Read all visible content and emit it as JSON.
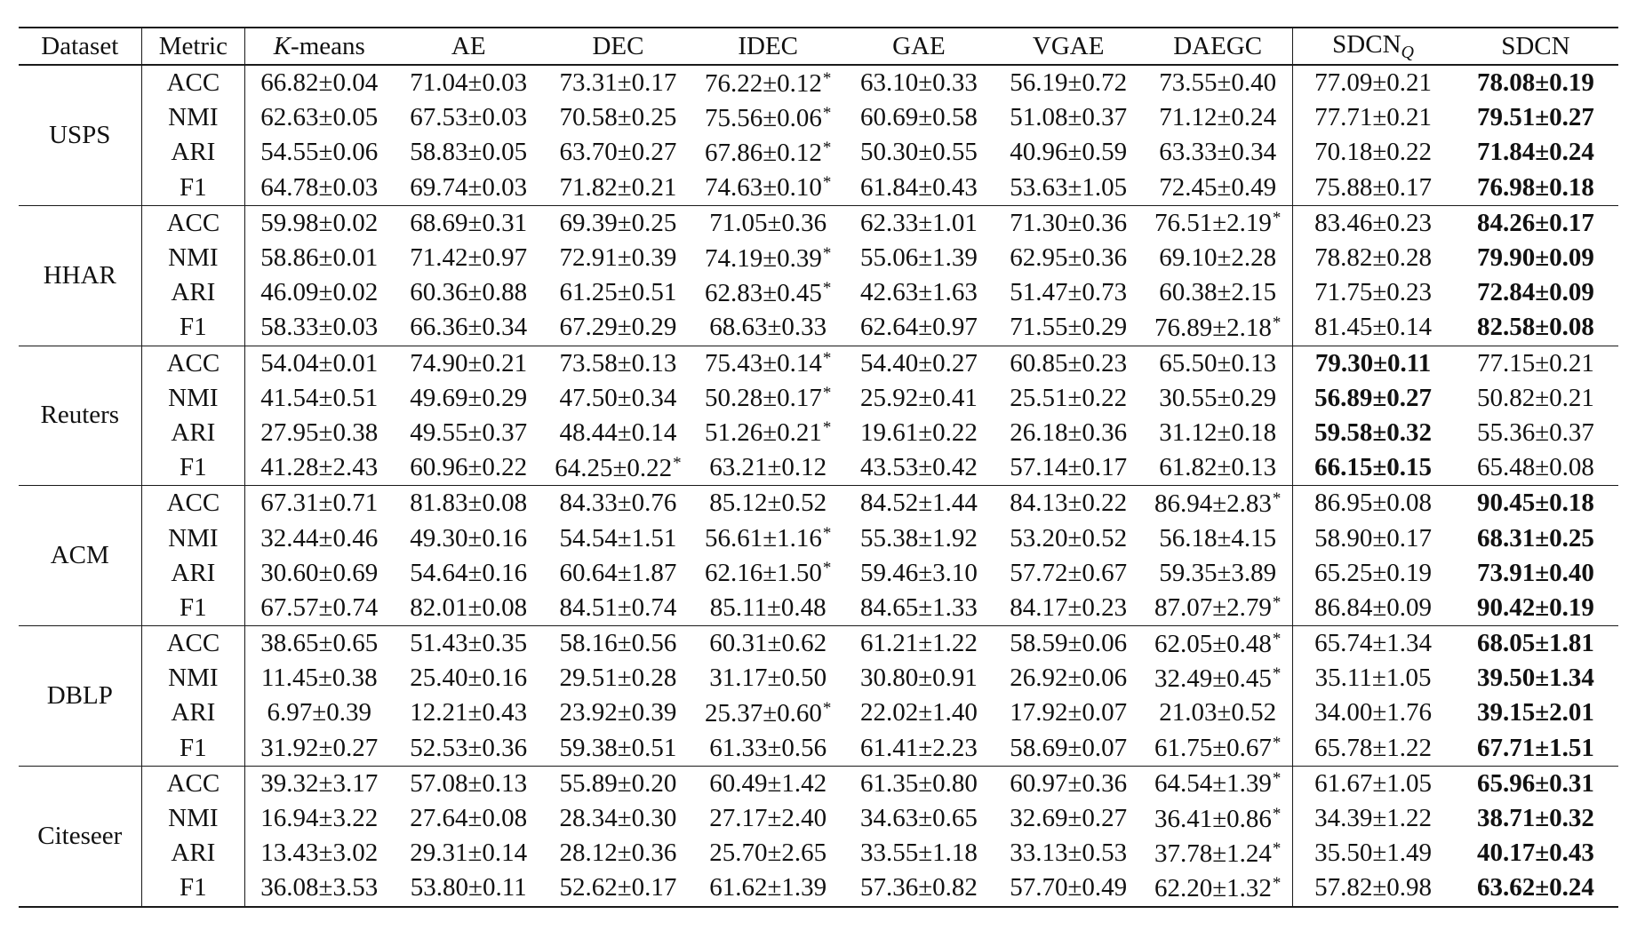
{
  "header": {
    "dataset": "Dataset",
    "metric": "Metric",
    "kmeans_k": "K",
    "kmeans_rest": "-means",
    "ae": "AE",
    "dec": "DEC",
    "idec": "IDEC",
    "gae": "GAE",
    "vgae": "VGAE",
    "daegc": "DAEGC",
    "sdcnq_base": "SDCN",
    "sdcnq_sub": "Q",
    "sdcn": "SDCN"
  },
  "star_mark": "*",
  "groups": [
    {
      "name": "USPS",
      "rows": [
        {
          "metric": "ACC",
          "cells": [
            {
              "v": "66.82±0.04"
            },
            {
              "v": "71.04±0.03"
            },
            {
              "v": "73.31±0.17"
            },
            {
              "v": "76.22±0.12",
              "star": true
            },
            {
              "v": "63.10±0.33"
            },
            {
              "v": "56.19±0.72"
            },
            {
              "v": "73.55±0.40"
            },
            {
              "v": "77.09±0.21"
            },
            {
              "v": "78.08±0.19",
              "bold": true
            }
          ]
        },
        {
          "metric": "NMI",
          "cells": [
            {
              "v": "62.63±0.05"
            },
            {
              "v": "67.53±0.03"
            },
            {
              "v": "70.58±0.25"
            },
            {
              "v": "75.56±0.06",
              "star": true
            },
            {
              "v": "60.69±0.58"
            },
            {
              "v": "51.08±0.37"
            },
            {
              "v": "71.12±0.24"
            },
            {
              "v": "77.71±0.21"
            },
            {
              "v": "79.51±0.27",
              "bold": true
            }
          ]
        },
        {
          "metric": "ARI",
          "cells": [
            {
              "v": "54.55±0.06"
            },
            {
              "v": "58.83±0.05"
            },
            {
              "v": "63.70±0.27"
            },
            {
              "v": "67.86±0.12",
              "star": true
            },
            {
              "v": "50.30±0.55"
            },
            {
              "v": "40.96±0.59"
            },
            {
              "v": "63.33±0.34"
            },
            {
              "v": "70.18±0.22"
            },
            {
              "v": "71.84±0.24",
              "bold": true
            }
          ]
        },
        {
          "metric": "F1",
          "cells": [
            {
              "v": "64.78±0.03"
            },
            {
              "v": "69.74±0.03"
            },
            {
              "v": "71.82±0.21"
            },
            {
              "v": "74.63±0.10",
              "star": true
            },
            {
              "v": "61.84±0.43"
            },
            {
              "v": "53.63±1.05"
            },
            {
              "v": "72.45±0.49"
            },
            {
              "v": "75.88±0.17"
            },
            {
              "v": "76.98±0.18",
              "bold": true
            }
          ]
        }
      ]
    },
    {
      "name": "HHAR",
      "rows": [
        {
          "metric": "ACC",
          "cells": [
            {
              "v": "59.98±0.02"
            },
            {
              "v": "68.69±0.31"
            },
            {
              "v": "69.39±0.25"
            },
            {
              "v": "71.05±0.36"
            },
            {
              "v": "62.33±1.01"
            },
            {
              "v": "71.30±0.36"
            },
            {
              "v": "76.51±2.19",
              "star": true
            },
            {
              "v": "83.46±0.23"
            },
            {
              "v": "84.26±0.17",
              "bold": true
            }
          ]
        },
        {
          "metric": "NMI",
          "cells": [
            {
              "v": "58.86±0.01"
            },
            {
              "v": "71.42±0.97"
            },
            {
              "v": "72.91±0.39"
            },
            {
              "v": "74.19±0.39",
              "star": true
            },
            {
              "v": "55.06±1.39"
            },
            {
              "v": "62.95±0.36"
            },
            {
              "v": "69.10±2.28"
            },
            {
              "v": "78.82±0.28"
            },
            {
              "v": "79.90±0.09",
              "bold": true
            }
          ]
        },
        {
          "metric": "ARI",
          "cells": [
            {
              "v": "46.09±0.02"
            },
            {
              "v": "60.36±0.88"
            },
            {
              "v": "61.25±0.51"
            },
            {
              "v": "62.83±0.45",
              "star": true
            },
            {
              "v": "42.63±1.63"
            },
            {
              "v": "51.47±0.73"
            },
            {
              "v": "60.38±2.15"
            },
            {
              "v": "71.75±0.23"
            },
            {
              "v": "72.84±0.09",
              "bold": true
            }
          ]
        },
        {
          "metric": "F1",
          "cells": [
            {
              "v": "58.33±0.03"
            },
            {
              "v": "66.36±0.34"
            },
            {
              "v": "67.29±0.29"
            },
            {
              "v": "68.63±0.33"
            },
            {
              "v": "62.64±0.97"
            },
            {
              "v": "71.55±0.29"
            },
            {
              "v": "76.89±2.18",
              "star": true
            },
            {
              "v": "81.45±0.14"
            },
            {
              "v": "82.58±0.08",
              "bold": true
            }
          ]
        }
      ]
    },
    {
      "name": "Reuters",
      "rows": [
        {
          "metric": "ACC",
          "cells": [
            {
              "v": "54.04±0.01"
            },
            {
              "v": "74.90±0.21"
            },
            {
              "v": "73.58±0.13"
            },
            {
              "v": "75.43±0.14",
              "star": true
            },
            {
              "v": "54.40±0.27"
            },
            {
              "v": "60.85±0.23"
            },
            {
              "v": "65.50±0.13"
            },
            {
              "v": "79.30±0.11",
              "bold": true
            },
            {
              "v": "77.15±0.21"
            }
          ]
        },
        {
          "metric": "NMI",
          "cells": [
            {
              "v": "41.54±0.51"
            },
            {
              "v": "49.69±0.29"
            },
            {
              "v": "47.50±0.34"
            },
            {
              "v": "50.28±0.17",
              "star": true
            },
            {
              "v": "25.92±0.41"
            },
            {
              "v": "25.51±0.22"
            },
            {
              "v": "30.55±0.29"
            },
            {
              "v": "56.89±0.27",
              "bold": true
            },
            {
              "v": "50.82±0.21"
            }
          ]
        },
        {
          "metric": "ARI",
          "cells": [
            {
              "v": "27.95±0.38"
            },
            {
              "v": "49.55±0.37"
            },
            {
              "v": "48.44±0.14"
            },
            {
              "v": "51.26±0.21",
              "star": true
            },
            {
              "v": "19.61±0.22"
            },
            {
              "v": "26.18±0.36"
            },
            {
              "v": "31.12±0.18"
            },
            {
              "v": "59.58±0.32",
              "bold": true
            },
            {
              "v": "55.36±0.37"
            }
          ]
        },
        {
          "metric": "F1",
          "cells": [
            {
              "v": "41.28±2.43"
            },
            {
              "v": "60.96±0.22"
            },
            {
              "v": "64.25±0.22",
              "star": true
            },
            {
              "v": "63.21±0.12"
            },
            {
              "v": "43.53±0.42"
            },
            {
              "v": "57.14±0.17"
            },
            {
              "v": "61.82±0.13"
            },
            {
              "v": "66.15±0.15",
              "bold": true
            },
            {
              "v": "65.48±0.08"
            }
          ]
        }
      ]
    },
    {
      "name": "ACM",
      "rows": [
        {
          "metric": "ACC",
          "cells": [
            {
              "v": "67.31±0.71"
            },
            {
              "v": "81.83±0.08"
            },
            {
              "v": "84.33±0.76"
            },
            {
              "v": "85.12±0.52"
            },
            {
              "v": "84.52±1.44"
            },
            {
              "v": "84.13±0.22"
            },
            {
              "v": "86.94±2.83",
              "star": true
            },
            {
              "v": "86.95±0.08"
            },
            {
              "v": "90.45±0.18",
              "bold": true
            }
          ]
        },
        {
          "metric": "NMI",
          "cells": [
            {
              "v": "32.44±0.46"
            },
            {
              "v": "49.30±0.16"
            },
            {
              "v": "54.54±1.51"
            },
            {
              "v": "56.61±1.16",
              "star": true
            },
            {
              "v": "55.38±1.92"
            },
            {
              "v": "53.20±0.52"
            },
            {
              "v": "56.18±4.15"
            },
            {
              "v": "58.90±0.17"
            },
            {
              "v": "68.31±0.25",
              "bold": true
            }
          ]
        },
        {
          "metric": "ARI",
          "cells": [
            {
              "v": "30.60±0.69"
            },
            {
              "v": "54.64±0.16"
            },
            {
              "v": "60.64±1.87"
            },
            {
              "v": "62.16±1.50",
              "star": true
            },
            {
              "v": "59.46±3.10"
            },
            {
              "v": "57.72±0.67"
            },
            {
              "v": "59.35±3.89"
            },
            {
              "v": "65.25±0.19"
            },
            {
              "v": "73.91±0.40",
              "bold": true
            }
          ]
        },
        {
          "metric": "F1",
          "cells": [
            {
              "v": "67.57±0.74"
            },
            {
              "v": "82.01±0.08"
            },
            {
              "v": "84.51±0.74"
            },
            {
              "v": "85.11±0.48"
            },
            {
              "v": "84.65±1.33"
            },
            {
              "v": "84.17±0.23"
            },
            {
              "v": "87.07±2.79",
              "star": true
            },
            {
              "v": "86.84±0.09"
            },
            {
              "v": "90.42±0.19",
              "bold": true
            }
          ]
        }
      ]
    },
    {
      "name": "DBLP",
      "rows": [
        {
          "metric": "ACC",
          "cells": [
            {
              "v": "38.65±0.65"
            },
            {
              "v": "51.43±0.35"
            },
            {
              "v": "58.16±0.56"
            },
            {
              "v": "60.31±0.62"
            },
            {
              "v": "61.21±1.22"
            },
            {
              "v": "58.59±0.06"
            },
            {
              "v": "62.05±0.48",
              "star": true
            },
            {
              "v": "65.74±1.34"
            },
            {
              "v": "68.05±1.81",
              "bold": true
            }
          ]
        },
        {
          "metric": "NMI",
          "cells": [
            {
              "v": "11.45±0.38"
            },
            {
              "v": "25.40±0.16"
            },
            {
              "v": "29.51±0.28"
            },
            {
              "v": "31.17±0.50"
            },
            {
              "v": "30.80±0.91"
            },
            {
              "v": "26.92±0.06"
            },
            {
              "v": "32.49±0.45",
              "star": true
            },
            {
              "v": "35.11±1.05"
            },
            {
              "v": "39.50±1.34",
              "bold": true
            }
          ]
        },
        {
          "metric": "ARI",
          "cells": [
            {
              "v": "6.97±0.39"
            },
            {
              "v": "12.21±0.43"
            },
            {
              "v": "23.92±0.39"
            },
            {
              "v": "25.37±0.60",
              "star": true
            },
            {
              "v": "22.02±1.40"
            },
            {
              "v": "17.92±0.07"
            },
            {
              "v": "21.03±0.52"
            },
            {
              "v": "34.00±1.76"
            },
            {
              "v": "39.15±2.01",
              "bold": true
            }
          ]
        },
        {
          "metric": "F1",
          "cells": [
            {
              "v": "31.92±0.27"
            },
            {
              "v": "52.53±0.36"
            },
            {
              "v": "59.38±0.51"
            },
            {
              "v": "61.33±0.56"
            },
            {
              "v": "61.41±2.23"
            },
            {
              "v": "58.69±0.07"
            },
            {
              "v": "61.75±0.67",
              "star": true
            },
            {
              "v": "65.78±1.22"
            },
            {
              "v": "67.71±1.51",
              "bold": true
            }
          ]
        }
      ]
    },
    {
      "name": "Citeseer",
      "rows": [
        {
          "metric": "ACC",
          "cells": [
            {
              "v": "39.32±3.17"
            },
            {
              "v": "57.08±0.13"
            },
            {
              "v": "55.89±0.20"
            },
            {
              "v": "60.49±1.42"
            },
            {
              "v": "61.35±0.80"
            },
            {
              "v": "60.97±0.36"
            },
            {
              "v": "64.54±1.39",
              "star": true
            },
            {
              "v": "61.67±1.05"
            },
            {
              "v": "65.96±0.31",
              "bold": true
            }
          ]
        },
        {
          "metric": "NMI",
          "cells": [
            {
              "v": "16.94±3.22"
            },
            {
              "v": "27.64±0.08"
            },
            {
              "v": "28.34±0.30"
            },
            {
              "v": "27.17±2.40"
            },
            {
              "v": "34.63±0.65"
            },
            {
              "v": "32.69±0.27"
            },
            {
              "v": "36.41±0.86",
              "star": true
            },
            {
              "v": "34.39±1.22"
            },
            {
              "v": "38.71±0.32",
              "bold": true
            }
          ]
        },
        {
          "metric": "ARI",
          "cells": [
            {
              "v": "13.43±3.02"
            },
            {
              "v": "29.31±0.14"
            },
            {
              "v": "28.12±0.36"
            },
            {
              "v": "25.70±2.65"
            },
            {
              "v": "33.55±1.18"
            },
            {
              "v": "33.13±0.53"
            },
            {
              "v": "37.78±1.24",
              "star": true
            },
            {
              "v": "35.50±1.49"
            },
            {
              "v": "40.17±0.43",
              "bold": true
            }
          ]
        },
        {
          "metric": "F1",
          "cells": [
            {
              "v": "36.08±3.53"
            },
            {
              "v": "53.80±0.11"
            },
            {
              "v": "52.62±0.17"
            },
            {
              "v": "61.62±1.39"
            },
            {
              "v": "57.36±0.82"
            },
            {
              "v": "57.70±0.49"
            },
            {
              "v": "62.20±1.32",
              "star": true
            },
            {
              "v": "57.82±0.98"
            },
            {
              "v": "63.62±0.24",
              "bold": true
            }
          ]
        }
      ]
    }
  ]
}
